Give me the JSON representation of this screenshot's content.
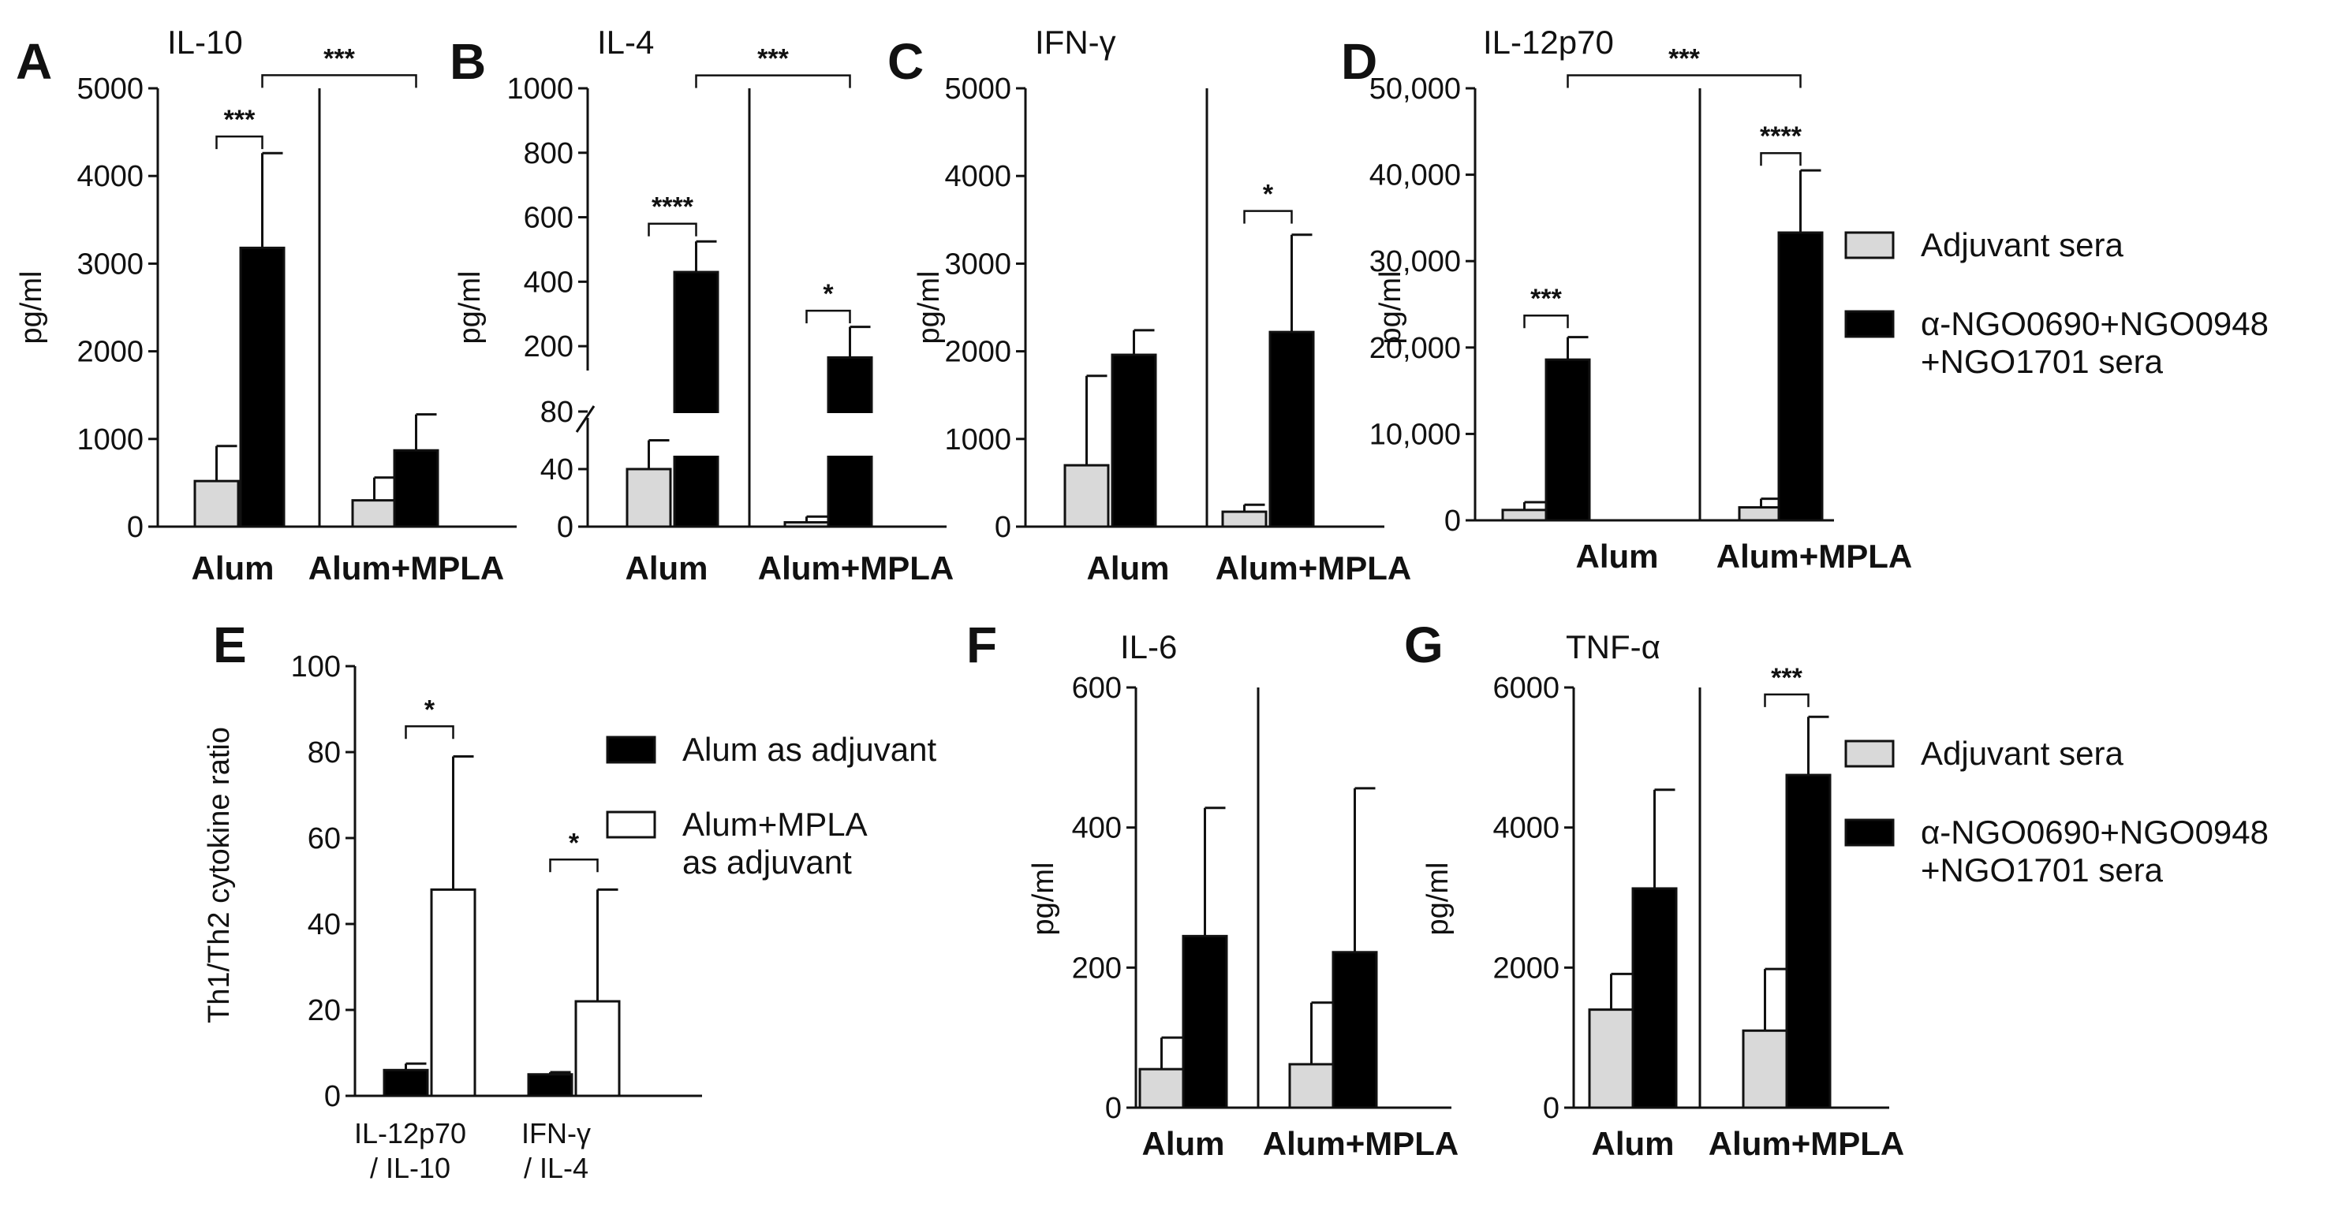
{
  "figure": {
    "legends": {
      "main": [
        {
          "label": "Adjuvant sera",
          "color": "#d9d9d9"
        },
        {
          "label": "α-NGO0690+NGO0948",
          "label2": "+NGO1701 sera",
          "color": "#000000"
        }
      ],
      "ratio": [
        {
          "label": "Alum as adjuvant",
          "color": "#000000"
        },
        {
          "label": "Alum+MPLA",
          "label2": "as adjuvant",
          "color": "#ffffff"
        }
      ]
    }
  },
  "chart_data": [
    {
      "id": "A",
      "letter": "A",
      "type": "bar",
      "title": "IL-10",
      "ylabel": "pg/ml",
      "ylim": [
        0,
        5000
      ],
      "yticks": [
        0,
        1000,
        2000,
        3000,
        4000,
        5000
      ],
      "ytick_labels": [
        "0",
        "1000",
        "2000",
        "3000",
        "4000",
        "5000"
      ],
      "categories": [
        "Alum",
        "Alum+MPLA"
      ],
      "series": [
        {
          "name": "Adjuvant sera",
          "color": "#d9d9d9",
          "values": [
            520,
            300
          ],
          "errors": [
            400,
            260
          ]
        },
        {
          "name": "α-NGO0690+NGO0948+NGO1701 sera",
          "color": "#000000",
          "values": [
            3180,
            870
          ],
          "errors": [
            1080,
            410
          ]
        }
      ],
      "significance": [
        {
          "type": "within",
          "group": 0,
          "label": "***",
          "level": 4450
        },
        {
          "type": "between",
          "label": "***",
          "level": 5150
        }
      ]
    },
    {
      "id": "B",
      "letter": "B",
      "type": "bar",
      "title": "IL-4",
      "ylabel": "pg/ml",
      "broken_axis": {
        "lower": [
          0,
          80
        ],
        "upper": [
          100,
          1000
        ]
      },
      "yticks": [
        0,
        40,
        80,
        200,
        400,
        600,
        800,
        1000
      ],
      "ytick_labels": [
        "0",
        "40",
        "80",
        "200",
        "400",
        "600",
        "800",
        "1000"
      ],
      "categories": [
        "Alum",
        "Alum+MPLA"
      ],
      "series": [
        {
          "name": "Adjuvant sera",
          "color": "#d9d9d9",
          "values": [
            40,
            3
          ],
          "errors": [
            20,
            4
          ]
        },
        {
          "name": "α-NGO0690+NGO0948+NGO1701 sera",
          "color": "#000000",
          "values": [
            430,
            165
          ],
          "errors": [
            95,
            95
          ]
        }
      ],
      "significance": [
        {
          "type": "within",
          "group": 0,
          "label": "****",
          "level": 580
        },
        {
          "type": "within",
          "group": 1,
          "label": "*",
          "level": 310
        },
        {
          "type": "between",
          "label": "***",
          "level": 1040
        }
      ]
    },
    {
      "id": "C",
      "letter": "C",
      "type": "bar",
      "title": "IFN-γ",
      "ylabel": "pg/ml",
      "ylim": [
        0,
        5000
      ],
      "yticks": [
        0,
        1000,
        2000,
        3000,
        4000,
        5000
      ],
      "ytick_labels": [
        "0",
        "1000",
        "2000",
        "3000",
        "4000",
        "5000"
      ],
      "categories": [
        "Alum",
        "Alum+MPLA"
      ],
      "series": [
        {
          "name": "Adjuvant sera",
          "color": "#d9d9d9",
          "values": [
            700,
            170
          ],
          "errors": [
            1020,
            80
          ]
        },
        {
          "name": "α-NGO0690+NGO0948+NGO1701 sera",
          "color": "#000000",
          "values": [
            1960,
            2220
          ],
          "errors": [
            280,
            1110
          ]
        }
      ],
      "significance": [
        {
          "type": "within",
          "group": 1,
          "label": "*",
          "level": 3600
        }
      ]
    },
    {
      "id": "D",
      "letter": "D",
      "type": "bar",
      "title": "IL-12p70",
      "ylabel": "pg/ml",
      "ylim": [
        0,
        50000
      ],
      "yticks": [
        0,
        10000,
        20000,
        30000,
        40000,
        50000
      ],
      "ytick_labels": [
        "0",
        "10,000",
        "20,000",
        "30,000",
        "40,000",
        "50,000"
      ],
      "categories": [
        "Alum",
        "Alum+MPLA"
      ],
      "series": [
        {
          "name": "Adjuvant sera",
          "color": "#d9d9d9",
          "values": [
            1200,
            1500
          ],
          "errors": [
            900,
            1000
          ]
        },
        {
          "name": "α-NGO0690+NGO0948+NGO1701 sera",
          "color": "#000000",
          "values": [
            18600,
            33300
          ],
          "errors": [
            2600,
            7200
          ]
        }
      ],
      "significance": [
        {
          "type": "within",
          "group": 0,
          "label": "***",
          "level": 23700
        },
        {
          "type": "within",
          "group": 1,
          "label": "****",
          "level": 42500
        },
        {
          "type": "between",
          "label": "***",
          "level": 51500
        }
      ]
    },
    {
      "id": "E",
      "letter": "E",
      "type": "bar",
      "title": "",
      "ylabel": "Th1/Th2 cytokine ratio",
      "ylim": [
        0,
        100
      ],
      "yticks": [
        0,
        20,
        40,
        60,
        80,
        100
      ],
      "ytick_labels": [
        "0",
        "20",
        "40",
        "60",
        "80",
        "100"
      ],
      "categories": [
        "IL-12p70 / IL-10",
        "IFN-γ / IL-4"
      ],
      "category_lines": [
        [
          "IL-12p70",
          "/ IL-10"
        ],
        [
          "IFN-γ",
          "/ IL-4"
        ]
      ],
      "series": [
        {
          "name": "Alum as adjuvant",
          "color": "#000000",
          "values": [
            6,
            5
          ],
          "errors": [
            1.5,
            0.5
          ]
        },
        {
          "name": "Alum+MPLA as adjuvant",
          "color": "#ffffff",
          "values": [
            48,
            22
          ],
          "errors": [
            31,
            26
          ]
        }
      ],
      "significance": [
        {
          "type": "within",
          "group": 0,
          "label": "*",
          "level": 86
        },
        {
          "type": "within",
          "group": 1,
          "label": "*",
          "level": 55
        }
      ]
    },
    {
      "id": "F",
      "letter": "F",
      "type": "bar",
      "title": "IL-6",
      "ylabel": "pg/ml",
      "ylim": [
        0,
        600
      ],
      "yticks": [
        0,
        200,
        400,
        600
      ],
      "ytick_labels": [
        "0",
        "200",
        "400",
        "600"
      ],
      "categories": [
        "Alum",
        "Alum+MPLA"
      ],
      "series": [
        {
          "name": "Adjuvant sera",
          "color": "#d9d9d9",
          "values": [
            55,
            62
          ],
          "errors": [
            45,
            88
          ]
        },
        {
          "name": "α-NGO0690+NGO0948+NGO1701 sera",
          "color": "#000000",
          "values": [
            245,
            222
          ],
          "errors": [
            183,
            234
          ]
        }
      ],
      "significance": []
    },
    {
      "id": "G",
      "letter": "G",
      "type": "bar",
      "title": "TNF-α",
      "ylabel": "pg/ml",
      "ylim": [
        0,
        6000
      ],
      "yticks": [
        0,
        2000,
        4000,
        6000
      ],
      "ytick_labels": [
        "0",
        "2000",
        "4000",
        "6000"
      ],
      "categories": [
        "Alum",
        "Alum+MPLA"
      ],
      "series": [
        {
          "name": "Adjuvant sera",
          "color": "#d9d9d9",
          "values": [
            1400,
            1100
          ],
          "errors": [
            510,
            880
          ]
        },
        {
          "name": "α-NGO0690+NGO0948+NGO1701 sera",
          "color": "#000000",
          "values": [
            3130,
            4750
          ],
          "errors": [
            1410,
            830
          ]
        }
      ],
      "significance": [
        {
          "type": "within",
          "group": 1,
          "label": "***",
          "level": 5900
        }
      ]
    }
  ]
}
